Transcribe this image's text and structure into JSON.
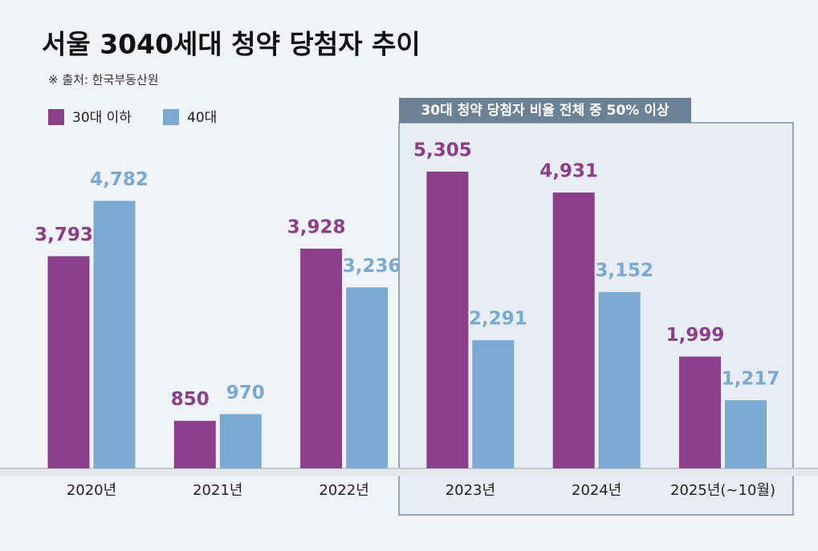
{
  "chart_data": {
    "type": "bar",
    "title": "서울 3040세대 청약 당첨자 추이",
    "subtitle": "※ 출처: 한국부동산원",
    "categories": [
      "2020년",
      "2021년",
      "2022년",
      "2023년",
      "2024년",
      "2025년(~10월)"
    ],
    "series": [
      {
        "name": "30대 이하",
        "color": "#8b3f8b",
        "values": [
          3793,
          850,
          3928,
          5305,
          4931,
          1999
        ],
        "value_labels": [
          "3,793",
          "850",
          "3,928",
          "5,305",
          "4,931",
          "1,999"
        ]
      },
      {
        "name": "40대",
        "color": "#7aaad2",
        "values": [
          4782,
          970,
          3236,
          2291,
          3152,
          1217
        ],
        "value_labels": [
          "4,782",
          "970",
          "3,236",
          "2,291",
          "3,152",
          "1,217"
        ]
      }
    ],
    "ylim": [
      0,
      6000
    ],
    "annotations": [
      "30대 청약 당첨자 비율 전체 중 50% 이상"
    ]
  }
}
